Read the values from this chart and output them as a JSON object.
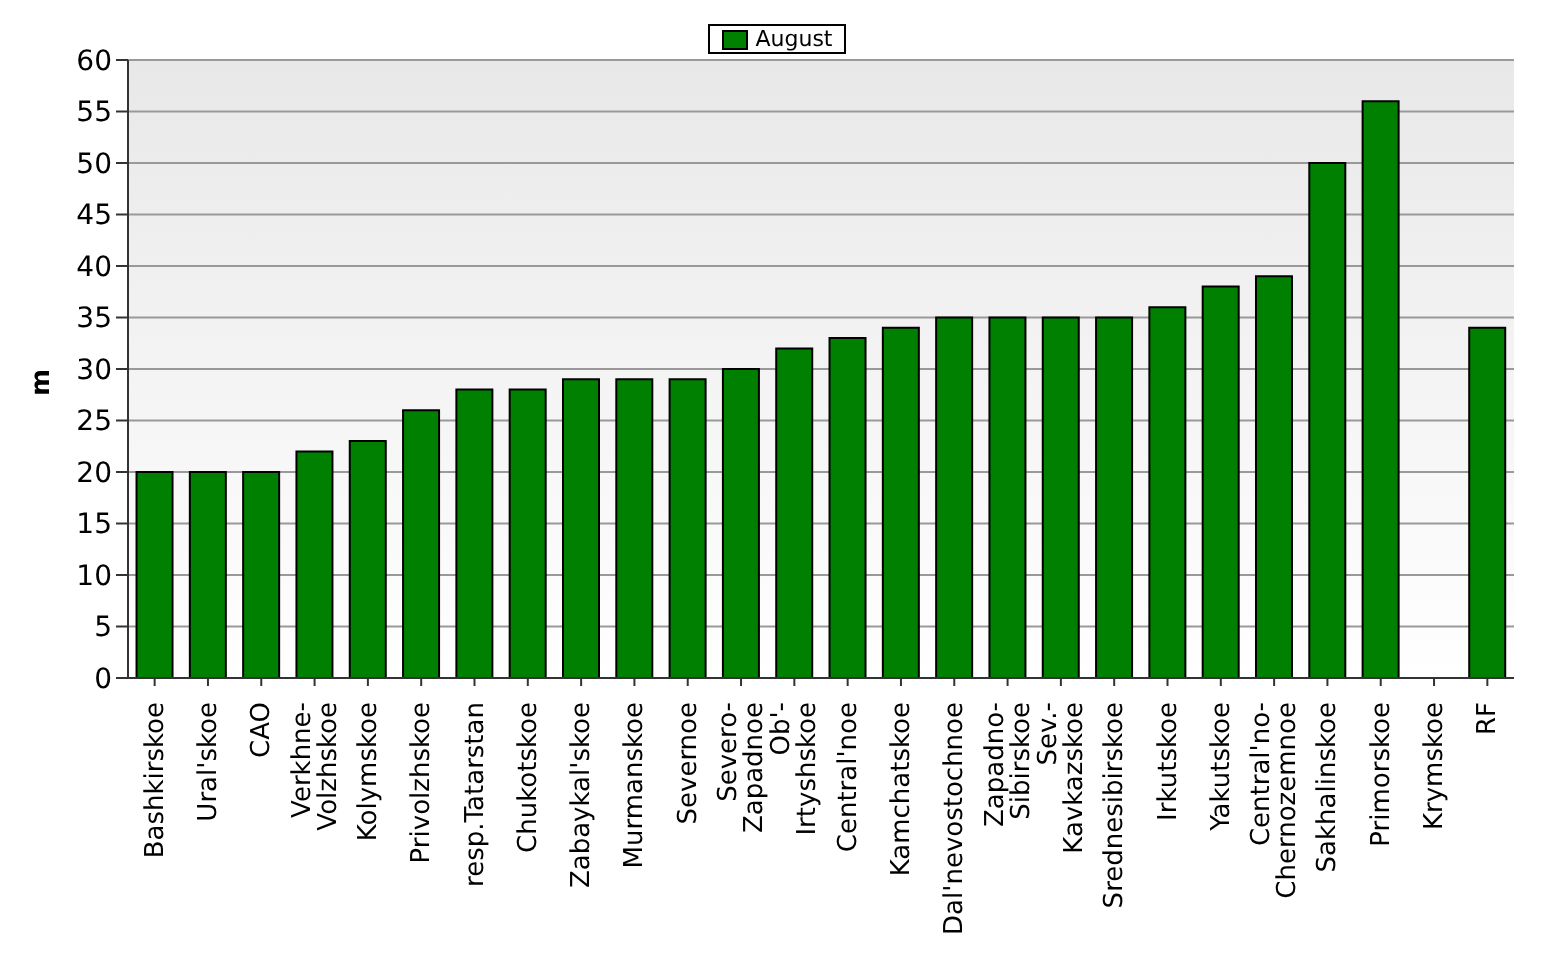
{
  "chart_data": {
    "type": "bar",
    "ylabel": "m",
    "categories": [
      "Bashkirskoe",
      "Ural'skoe",
      "CAO",
      "Verkhne-\nVolzhskoe",
      "Kolymskoe",
      "Privolzhskoe",
      "resp.Tatarstan",
      "Chukotskoe",
      "Zabaykal'skoe",
      "Murmanskoe",
      "Severnoe",
      "Severo-\nZapadnoe",
      "Ob'-\nIrtyshskoe",
      "Central'noe",
      "Kamchatskoe",
      "Dal'nevostochnoe",
      "Zapadno-\nSibirskoe",
      "Sev.-\nKavkazskoe",
      "Srednesibirskoe",
      "Irkutskoe",
      "Yakutskoe",
      "Central'no-\nChernozemnoe",
      "Sakhalinskoe",
      "Primorskoe",
      "Krymskoe",
      "RF"
    ],
    "series": [
      {
        "name": "August",
        "color": "#008000",
        "values": [
          20,
          20,
          20,
          22,
          23,
          26,
          28,
          28,
          29,
          29,
          29,
          30,
          32,
          33,
          34,
          35,
          35,
          35,
          35,
          36,
          38,
          39,
          50,
          56,
          null,
          34
        ]
      }
    ],
    "ylim": [
      0,
      60
    ],
    "yticks": [
      0,
      5,
      10,
      15,
      20,
      25,
      30,
      35,
      40,
      45,
      50,
      55,
      60
    ],
    "grid": "y",
    "legend": "top"
  }
}
